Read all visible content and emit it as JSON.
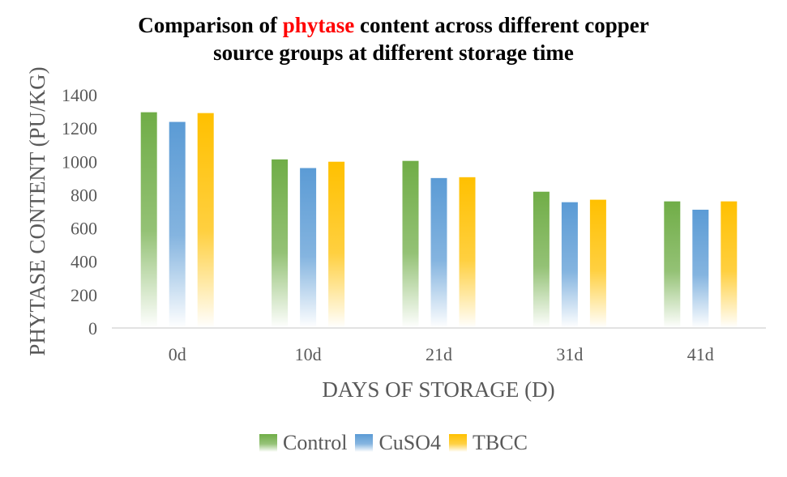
{
  "chart_data": {
    "type": "bar",
    "title": {
      "before": "Comparison of ",
      "highlight": "phytase",
      "line1_after": " content across different copper",
      "line2": "source groups at different storage time"
    },
    "xlabel": "DAYS OF STORAGE (D)",
    "ylabel": "PHYTASE CONTENT (PU/KG)",
    "ylim": [
      0,
      1400
    ],
    "yticks": [
      "0",
      "200",
      "400",
      "600",
      "800",
      "1000",
      "1200",
      "1400"
    ],
    "categories": [
      "0d",
      "10d",
      "21d",
      "31d",
      "41d"
    ],
    "series": [
      {
        "name": "Control",
        "color": "#70ad47",
        "values": [
          1295,
          1012,
          1003,
          818,
          760
        ]
      },
      {
        "name": "CuSO4",
        "color": "#5b9bd5",
        "values": [
          1237,
          960,
          900,
          755,
          710
        ]
      },
      {
        "name": "TBCC",
        "color": "#ffc000",
        "values": [
          1290,
          998,
          905,
          770,
          760
        ]
      }
    ],
    "grid": false,
    "legend": "bottom"
  }
}
